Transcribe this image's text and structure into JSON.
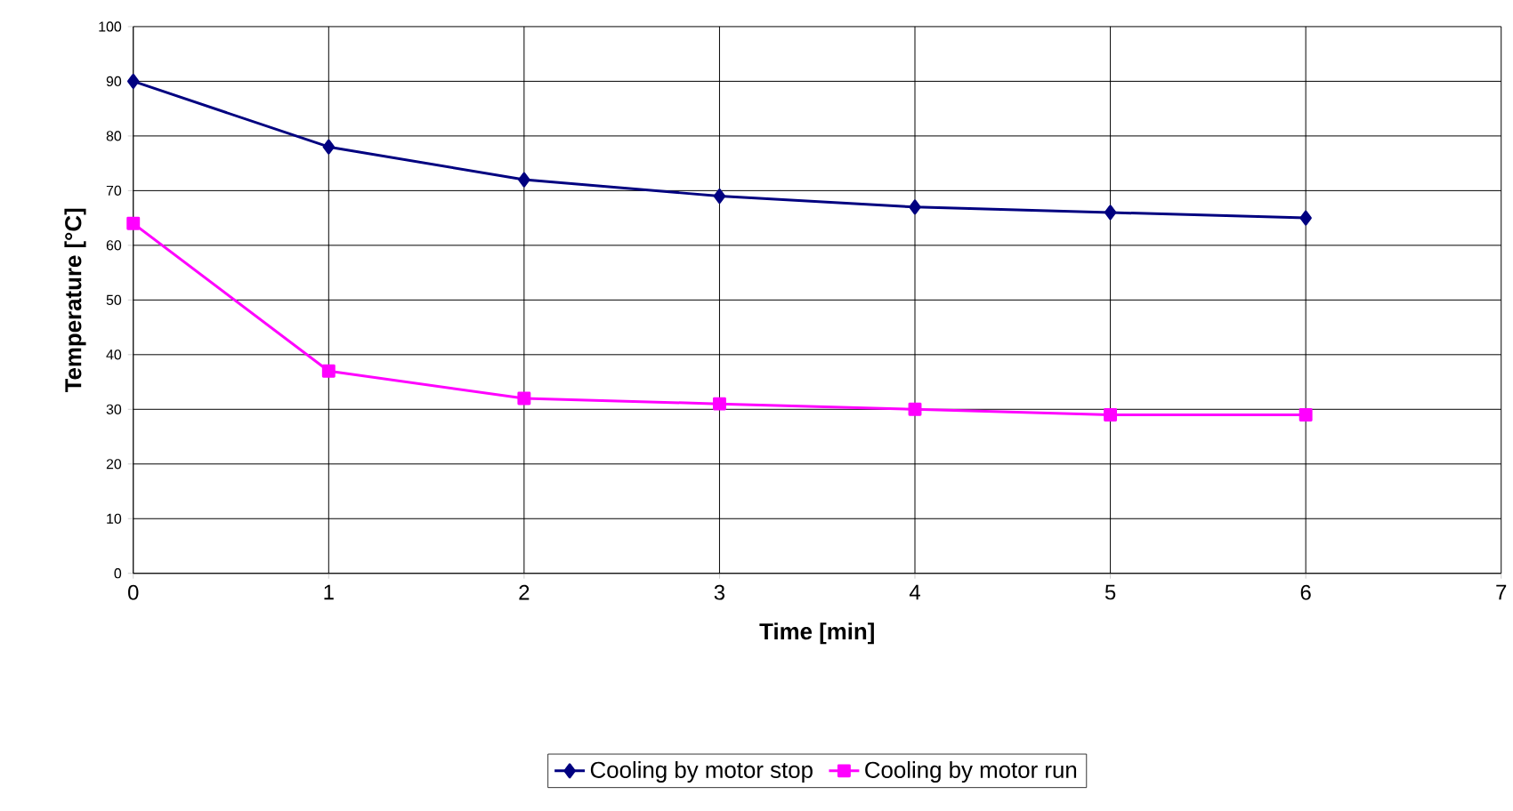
{
  "chart_data": {
    "type": "line",
    "xlabel": "Time [min]",
    "ylabel": "Temperature [°C]",
    "x": [
      0,
      1,
      2,
      3,
      4,
      5,
      6
    ],
    "xlim": [
      0,
      7
    ],
    "xticks": [
      0,
      1,
      2,
      3,
      4,
      5,
      6,
      7
    ],
    "ylim": [
      0,
      100
    ],
    "yticks": [
      0,
      10,
      20,
      30,
      40,
      50,
      60,
      70,
      80,
      90,
      100
    ],
    "grid": true,
    "legend": "bottom",
    "line_style": "solid",
    "series": [
      {
        "name": "Cooling by motor stop",
        "color": "#000080",
        "marker": "diamond",
        "values": [
          90,
          78,
          72,
          69,
          67,
          66,
          65
        ]
      },
      {
        "name": "Cooling by motor run",
        "color": "#ff00ff",
        "marker": "square",
        "values": [
          64,
          37,
          32,
          31,
          30,
          29,
          29
        ]
      }
    ]
  }
}
